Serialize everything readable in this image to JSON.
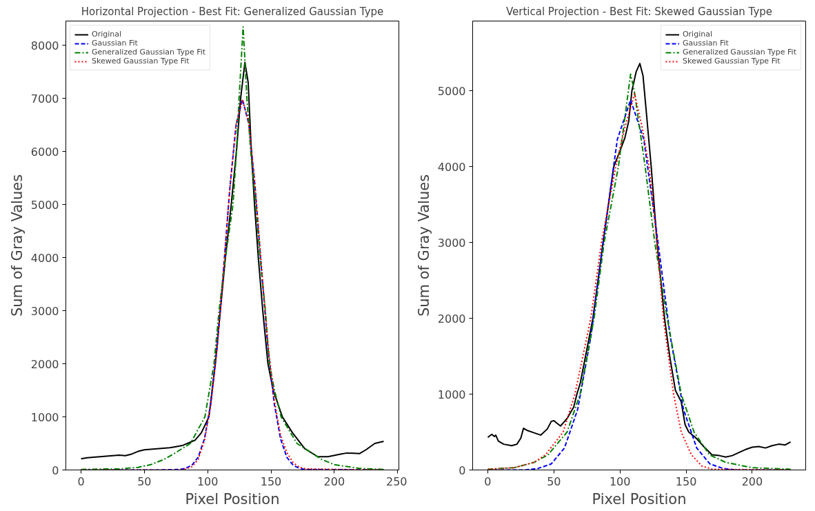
{
  "chart_data": [
    {
      "type": "line",
      "title": "Horizontal Projection - Best Fit: Generalized Gaussian Type",
      "xlabel": "Pixel Position",
      "ylabel": "Sum of Gray Values",
      "xlim": [
        -12,
        251
      ],
      "xticks": [
        0,
        50,
        100,
        150,
        200,
        250
      ],
      "ylim": [
        0,
        8460
      ],
      "yticks": [
        0,
        1000,
        2000,
        3000,
        4000,
        5000,
        6000,
        7000,
        8000
      ],
      "legend": "top left",
      "series": [
        {
          "name": "Original",
          "color": "#000000",
          "line_style": "solid",
          "x": [
            0,
            5,
            10,
            15,
            20,
            25,
            30,
            35,
            40,
            45,
            50,
            55,
            60,
            65,
            70,
            75,
            80,
            85,
            90,
            95,
            101,
            106,
            110,
            114,
            118.6,
            122.7,
            126,
            129.4,
            132,
            134.5,
            137,
            140,
            143.5,
            147.6,
            151.8,
            159,
            167,
            176.7,
            187,
            195,
            205,
            210,
            220,
            225,
            232,
            239
          ],
          "values": [
            210,
            230,
            240,
            250,
            260,
            270,
            280,
            270,
            300,
            350,
            380,
            390,
            400,
            410,
            420,
            440,
            460,
            510,
            560,
            700,
            1000,
            2000,
            3000,
            4000,
            5000,
            6000,
            7000,
            7680,
            7300,
            6000,
            5000,
            4000,
            3000,
            2000,
            1500,
            1000,
            700,
            400,
            250,
            250,
            300,
            320,
            310,
            380,
            500,
            540
          ]
        },
        {
          "name": "Gaussian Fit",
          "color": "#0000ff",
          "line_style": "dashed",
          "x": [
            0,
            60,
            77.5,
            82.5,
            87.5,
            92.5,
            97.5,
            102.5,
            107.5,
            112.5,
            117.5,
            122.5,
            127.5,
            132.5,
            137.5,
            142.5,
            147.5,
            152.5,
            157.5,
            162.5,
            167.5,
            172.5,
            177.5,
            239
          ],
          "values": [
            0,
            0,
            10,
            30,
            90,
            240,
            590,
            1260,
            2330,
            3770,
            5310,
            6520,
            6980,
            6520,
            5310,
            3770,
            2330,
            1260,
            590,
            240,
            90,
            30,
            10,
            0
          ]
        },
        {
          "name": "Generalized Gaussian Type Fit",
          "color": "#008000",
          "line_style": "dashdot",
          "x": [
            0,
            20,
            30,
            45,
            55,
            65.6,
            75,
            86.4,
            97.8,
            105,
            109,
            114,
            120,
            122.7,
            124.8,
            128,
            131,
            134,
            138,
            141.4,
            145.6,
            148.7,
            152.8,
            158,
            170.5,
            190,
            200,
            220,
            239
          ],
          "values": [
            10,
            20,
            20,
            50,
            100,
            200,
            330,
            500,
            1000,
            2000,
            3000,
            4000,
            5000,
            6000,
            7000,
            8350,
            7000,
            6000,
            5000,
            4000,
            3000,
            2000,
            1500,
            1000,
            500,
            200,
            100,
            30,
            10
          ]
        },
        {
          "name": "Skewed Gaussian Type Fit",
          "color": "#ff0000",
          "line_style": "dotted",
          "x": [
            0,
            60,
            77.5,
            82.5,
            87.5,
            92.5,
            97.5,
            102.5,
            107.5,
            112.5,
            117.5,
            122.5,
            127.5,
            132.5,
            137.5,
            142.5,
            147.5,
            152.5,
            157.5,
            162.5,
            167.5,
            172.5,
            177.5,
            239
          ],
          "values": [
            0,
            0,
            0,
            20,
            60,
            200,
            560,
            1230,
            2300,
            3750,
            5300,
            6520,
            6980,
            6540,
            5350,
            3830,
            2400,
            1330,
            660,
            330,
            140,
            50,
            20,
            0
          ]
        }
      ]
    },
    {
      "type": "line",
      "title": "Vertical Projection - Best Fit: Skewed Gaussian Type",
      "xlabel": "Pixel Position",
      "ylabel": "Sum of Gray Values",
      "xlim": [
        -11.45,
        240.45
      ],
      "xticks": [
        0,
        50,
        100,
        150,
        200
      ],
      "ylim": [
        0,
        5920
      ],
      "yticks": [
        0,
        1000,
        2000,
        3000,
        4000,
        5000
      ],
      "legend": "top right",
      "series": [
        {
          "name": "Original",
          "color": "#000000",
          "line_style": "solid",
          "x": [
            0,
            3,
            5,
            6,
            8,
            12,
            18,
            20,
            22,
            25,
            27,
            30,
            35,
            40,
            45,
            48,
            50,
            52,
            55,
            57,
            60,
            65,
            67.4,
            70,
            79.5,
            87.2,
            95.3,
            99.8,
            103.7,
            106.6,
            109,
            112.2,
            115,
            117.4,
            120,
            123.6,
            128,
            133.7,
            137.6,
            141.9,
            146.3,
            149.2,
            152,
            157,
            163.8,
            169.6,
            175,
            180,
            185,
            190,
            195,
            200,
            205,
            210,
            215,
            220,
            225,
            229
          ],
          "values": [
            430,
            470,
            440,
            460,
            380,
            340,
            320,
            330,
            340,
            420,
            550,
            520,
            490,
            460,
            540,
            640,
            650,
            620,
            580,
            620,
            680,
            830,
            1000,
            1150,
            2000,
            3000,
            4000,
            4200,
            4380,
            4600,
            5000,
            5250,
            5360,
            5200,
            4700,
            4000,
            3000,
            2000,
            1500,
            1050,
            900,
            600,
            500,
            430,
            300,
            200,
            190,
            170,
            190,
            230,
            270,
            300,
            310,
            290,
            320,
            340,
            330,
            370
          ]
        },
        {
          "name": "Gaussian Fit",
          "color": "#0000ff",
          "line_style": "dashed",
          "x": [
            0,
            28,
            38,
            48,
            58,
            68,
            78,
            88,
            98,
            108,
            118,
            128,
            138,
            148,
            158,
            168,
            178,
            188,
            229
          ],
          "values": [
            0,
            0,
            20,
            80,
            290,
            800,
            1760,
            3100,
            4360,
            4880,
            4360,
            3100,
            1760,
            800,
            290,
            80,
            20,
            0,
            0
          ]
        },
        {
          "name": "Generalized Gaussian Type Fit",
          "color": "#008000",
          "line_style": "dashdot",
          "x": [
            0,
            20,
            35,
            45.5,
            60,
            69.8,
            80.4,
            88,
            98.8,
            108,
            110.8,
            119,
            126.3,
            135.7,
            146.3,
            156,
            167.6,
            180,
            200,
            229
          ],
          "values": [
            10,
            30,
            100,
            200,
            500,
            1000,
            2000,
            3000,
            4000,
            5220,
            5000,
            4000,
            3000,
            2000,
            1000,
            500,
            200,
            100,
            30,
            10
          ]
        },
        {
          "name": "Skewed Gaussian Type Fit",
          "color": "#ff0000",
          "line_style": "dotted",
          "x": [
            0,
            20,
            35,
            43.6,
            57,
            65.9,
            77.9,
            86,
            96.8,
            103.4,
            111,
            117,
            122,
            128,
            132.8,
            140.5,
            146.3,
            154,
            162,
            170,
            229
          ],
          "values": [
            10,
            30,
            100,
            200,
            500,
            1000,
            2000,
            3000,
            4000,
            4500,
            4960,
            4500,
            4000,
            3000,
            2000,
            1000,
            500,
            200,
            50,
            10,
            0
          ]
        }
      ]
    }
  ]
}
